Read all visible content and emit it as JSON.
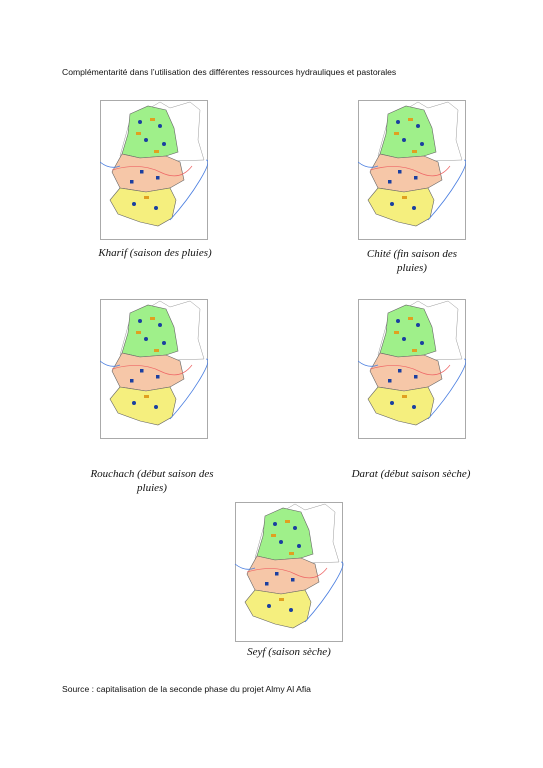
{
  "header": {
    "title": "Complémentarité dans l’utilisation des différentes ressources hydrauliques et pastorales"
  },
  "figures": [
    {
      "caption": "Kharif (saison des pluies)"
    },
    {
      "caption": "Chité (fin saison des pluies)"
    },
    {
      "caption": "Rouchach (début saison des pluies)"
    },
    {
      "caption": "Darat (début saison sèche)"
    },
    {
      "caption": "Seyf (saison sèche)"
    }
  ],
  "source": "Source : capitalisation de la seconde phase du projet Almy Al Afia"
}
